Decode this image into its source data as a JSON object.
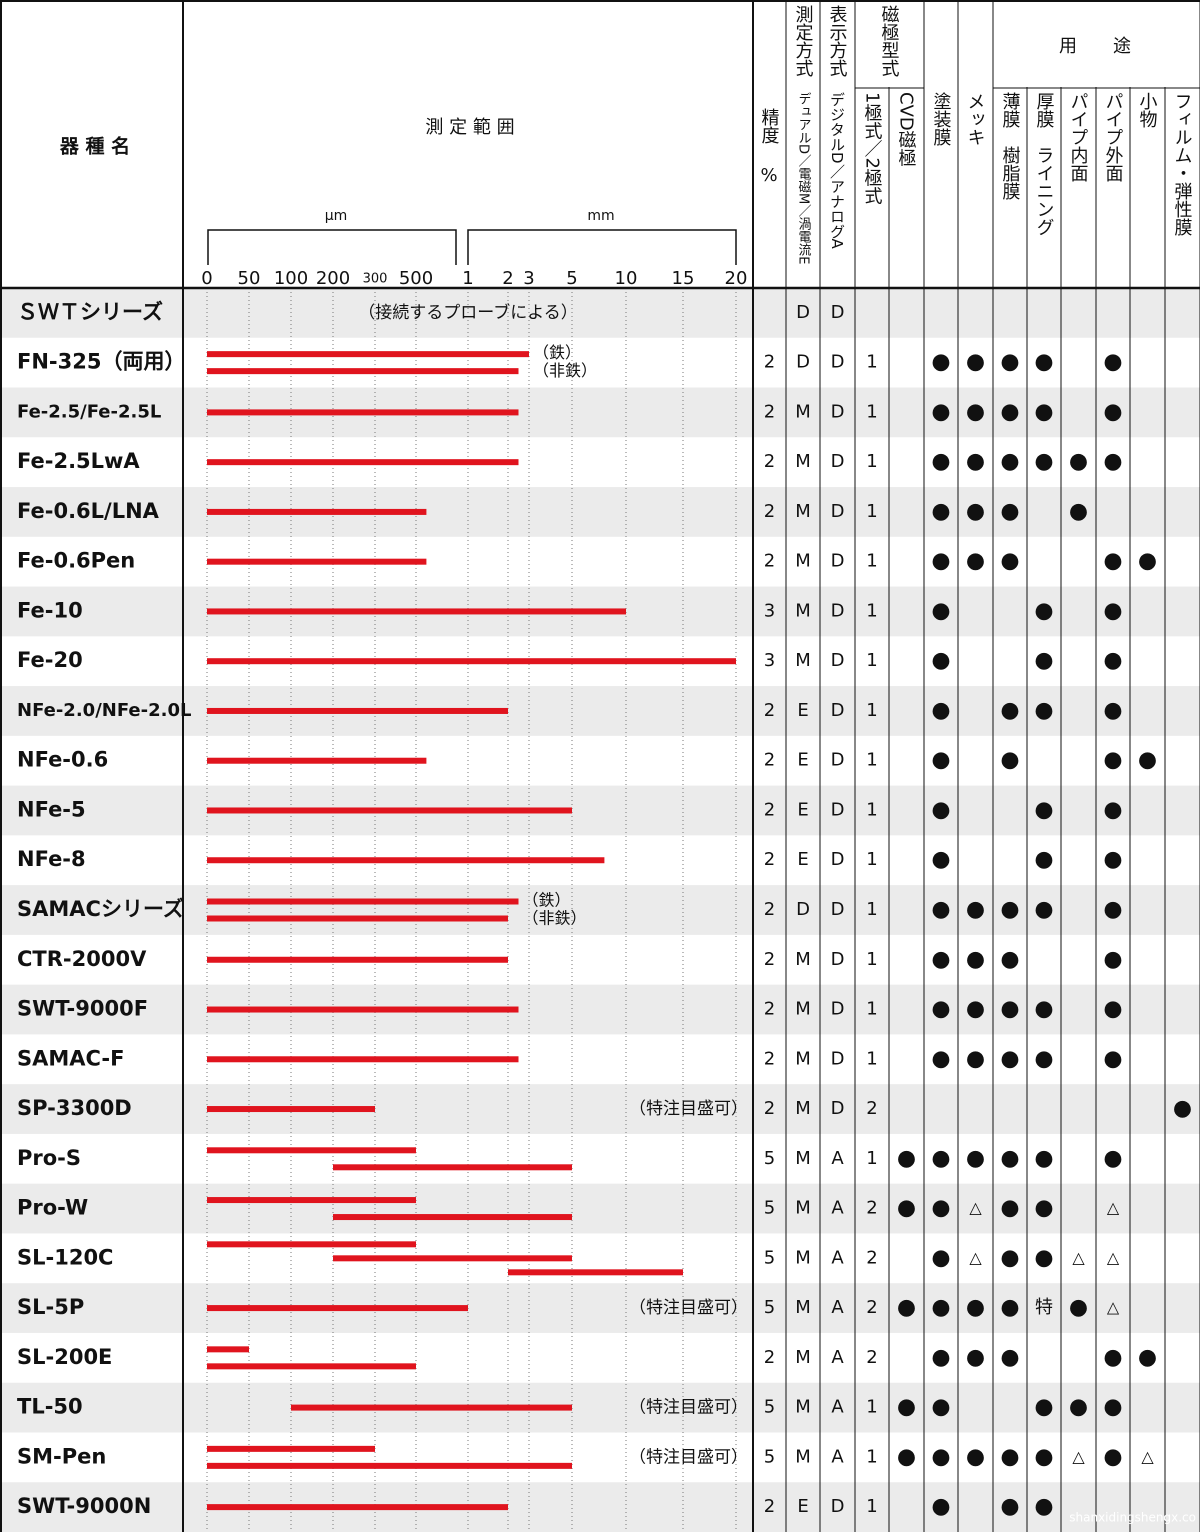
{
  "header": {
    "model": "器 種 名",
    "range": "測 定 範 囲",
    "um_unit": "µm",
    "mm_unit": "mm",
    "pole_group": "磁極型式",
    "usage_group": "用　　途",
    "precision": "精度",
    "percent": "%",
    "columns": [
      [
        "測定方式",
        "デュアルD／電磁M／渦電流E"
      ],
      [
        "表示方式",
        "デジタルD／アナログA"
      ],
      [
        "1極式／2極式"
      ],
      [
        "CVD磁極"
      ],
      [
        "塗装膜"
      ],
      [
        "メッキ"
      ],
      [
        "薄膜　樹脂膜"
      ],
      [
        "厚膜　ライニング"
      ],
      [
        "パイプ内面"
      ],
      [
        "パイプ外面"
      ],
      [
        "小物"
      ],
      [
        "フィルム・弾性膜"
      ]
    ]
  },
  "scale": {
    "ticks": [
      0,
      50,
      100,
      200,
      300,
      500,
      {
        "value": 1000,
        "label": "1"
      },
      {
        "value": 2000,
        "label": "2"
      },
      {
        "value": 3000,
        "label": "3"
      },
      {
        "value": 5000,
        "label": "5"
      },
      {
        "value": 10000,
        "label": "10"
      },
      {
        "value": 15000,
        "label": "15"
      },
      {
        "value": 20000,
        "label": "20"
      }
    ]
  },
  "rows": [
    {
      "name": "ＳＷＴシリーズ",
      "bars": [],
      "note": "（接続するプローブによる）",
      "cells": [
        null,
        "D",
        "D",
        null,
        null,
        null,
        null,
        null,
        null,
        null,
        null,
        null,
        null
      ]
    },
    {
      "name": "FN-325（両用）",
      "bars": [
        [
          0,
          3000
        ],
        [
          0,
          2500
        ]
      ],
      "bar_labels": [
        "（鉄）",
        "（非鉄）"
      ],
      "cells": [
        2,
        "D",
        "D",
        1,
        null,
        "●",
        "●",
        "●",
        "●",
        null,
        "●",
        null,
        null
      ]
    },
    {
      "name": "Fe-2.5/Fe-2.5L",
      "bars": [
        [
          0,
          2500
        ]
      ],
      "cells": [
        2,
        "M",
        "D",
        1,
        null,
        "●",
        "●",
        "●",
        "●",
        null,
        "●",
        null,
        null
      ]
    },
    {
      "name": "Fe-2.5LwA",
      "bars": [
        [
          0,
          2500
        ]
      ],
      "cells": [
        2,
        "M",
        "D",
        1,
        null,
        "●",
        "●",
        "●",
        "●",
        "●",
        "●",
        null,
        null
      ]
    },
    {
      "name": "Fe-0.6L/LNA",
      "bars": [
        [
          0,
          600
        ]
      ],
      "cells": [
        2,
        "M",
        "D",
        1,
        null,
        "●",
        "●",
        "●",
        null,
        "●",
        null,
        null,
        null
      ]
    },
    {
      "name": "Fe-0.6Pen",
      "bars": [
        [
          0,
          600
        ]
      ],
      "cells": [
        2,
        "M",
        "D",
        1,
        null,
        "●",
        "●",
        "●",
        null,
        null,
        "●",
        "●",
        null
      ]
    },
    {
      "name": "Fe-10",
      "bars": [
        [
          0,
          10000
        ]
      ],
      "cells": [
        3,
        "M",
        "D",
        1,
        null,
        "●",
        null,
        null,
        "●",
        null,
        "●",
        null,
        null
      ]
    },
    {
      "name": "Fe-20",
      "bars": [
        [
          0,
          20000
        ]
      ],
      "cells": [
        3,
        "M",
        "D",
        1,
        null,
        "●",
        null,
        null,
        "●",
        null,
        "●",
        null,
        null
      ]
    },
    {
      "name": "NFe-2.0/NFe-2.0L",
      "bars": [
        [
          0,
          2000
        ]
      ],
      "cells": [
        2,
        "E",
        "D",
        1,
        null,
        "●",
        null,
        "●",
        "●",
        null,
        "●",
        null,
        null
      ]
    },
    {
      "name": "NFe-0.6",
      "bars": [
        [
          0,
          600
        ]
      ],
      "cells": [
        2,
        "E",
        "D",
        1,
        null,
        "●",
        null,
        "●",
        null,
        null,
        "●",
        "●",
        null
      ]
    },
    {
      "name": "NFe-5",
      "bars": [
        [
          0,
          5000
        ]
      ],
      "cells": [
        2,
        "E",
        "D",
        1,
        null,
        "●",
        null,
        null,
        "●",
        null,
        "●",
        null,
        null
      ]
    },
    {
      "name": "NFe-8",
      "bars": [
        [
          0,
          8000
        ]
      ],
      "cells": [
        2,
        "E",
        "D",
        1,
        null,
        "●",
        null,
        null,
        "●",
        null,
        "●",
        null,
        null
      ]
    },
    {
      "name": "SAMACシリーズ",
      "bars": [
        [
          0,
          2500
        ],
        [
          0,
          2000
        ]
      ],
      "bar_labels": [
        "（鉄）",
        "（非鉄）"
      ],
      "cells": [
        2,
        "D",
        "D",
        1,
        null,
        "●",
        "●",
        "●",
        "●",
        null,
        "●",
        null,
        null
      ]
    },
    {
      "name": "CTR-2000V",
      "bars": [
        [
          0,
          2000
        ]
      ],
      "cells": [
        2,
        "M",
        "D",
        1,
        null,
        "●",
        "●",
        "●",
        null,
        null,
        "●",
        null,
        null
      ]
    },
    {
      "name": "SWT-9000F",
      "bars": [
        [
          0,
          2500
        ]
      ],
      "cells": [
        2,
        "M",
        "D",
        1,
        null,
        "●",
        "●",
        "●",
        "●",
        null,
        "●",
        null,
        null
      ]
    },
    {
      "name": "SAMAC-F",
      "bars": [
        [
          0,
          2500
        ]
      ],
      "cells": [
        2,
        "M",
        "D",
        1,
        null,
        "●",
        "●",
        "●",
        "●",
        null,
        "●",
        null,
        null
      ]
    },
    {
      "name": "SP-3300D",
      "bars": [
        [
          0,
          300
        ]
      ],
      "note": "（特注目盛可）",
      "cells": [
        2,
        "M",
        "D",
        2,
        null,
        null,
        null,
        null,
        null,
        null,
        null,
        null,
        "●"
      ]
    },
    {
      "name": "Pro-S",
      "bars": [
        [
          0,
          500
        ],
        [
          200,
          5000
        ]
      ],
      "cells": [
        5,
        "M",
        "A",
        1,
        "●",
        "●",
        "●",
        "●",
        "●",
        null,
        "●",
        null,
        null
      ]
    },
    {
      "name": "Pro-W",
      "bars": [
        [
          0,
          500
        ],
        [
          200,
          5000
        ]
      ],
      "cells": [
        5,
        "M",
        "A",
        2,
        "●",
        "●",
        "△",
        "●",
        "●",
        null,
        "△",
        null,
        null
      ]
    },
    {
      "name": "SL-120C",
      "bars": [
        [
          0,
          500
        ],
        [
          200,
          5000
        ],
        [
          2000,
          15000
        ]
      ],
      "cells": [
        5,
        "M",
        "A",
        2,
        null,
        "●",
        "△",
        "●",
        "●",
        "△",
        "△",
        null,
        null
      ]
    },
    {
      "name": "SL-5P",
      "bars": [
        [
          0,
          1000
        ]
      ],
      "note": "（特注目盛可）",
      "cells": [
        5,
        "M",
        "A",
        2,
        "●",
        "●",
        "●",
        "●",
        "特",
        "●",
        "△",
        null,
        null
      ]
    },
    {
      "name": "SL-200E",
      "bars": [
        [
          0,
          50
        ],
        [
          0,
          500
        ]
      ],
      "cells": [
        2,
        "M",
        "A",
        2,
        null,
        "●",
        "●",
        "●",
        null,
        null,
        "●",
        "●",
        null
      ]
    },
    {
      "name": "TL-50",
      "bars": [
        [
          100,
          5000
        ]
      ],
      "note": "（特注目盛可）",
      "cells": [
        5,
        "M",
        "A",
        1,
        "●",
        "●",
        null,
        null,
        "●",
        "●",
        "●",
        null,
        null
      ]
    },
    {
      "name": "SM-Pen",
      "bars": [
        [
          0,
          300
        ],
        [
          0,
          5000
        ]
      ],
      "note": "（特注目盛可）",
      "cells": [
        5,
        "M",
        "A",
        1,
        "●",
        "●",
        "●",
        "●",
        "●",
        "△",
        "●",
        "△",
        null
      ]
    },
    {
      "name": "SWT-9000N",
      "bars": [
        [
          0,
          2000
        ]
      ],
      "cells": [
        2,
        "E",
        "D",
        1,
        null,
        "●",
        null,
        "●",
        "●",
        null,
        null,
        null,
        null
      ]
    }
  ],
  "watermark": "shanxidingshengx.co"
}
